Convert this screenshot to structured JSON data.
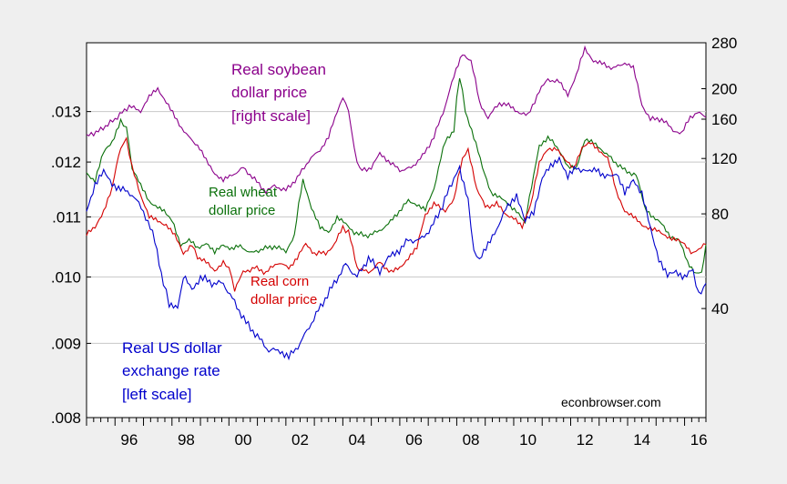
{
  "chart_data": {
    "type": "line",
    "x_tick_labels": [
      "96",
      "98",
      "00",
      "02",
      "04",
      "06",
      "08",
      "10",
      "12",
      "14",
      "16"
    ],
    "x_range": [
      1995.0,
      2016.75
    ],
    "left_axis": {
      "scale": "log",
      "range": [
        0.008,
        0.0145
      ],
      "ticks": [
        0.008,
        0.009,
        0.01,
        0.011,
        0.012,
        0.013
      ],
      "tick_labels": [
        ".008",
        ".009",
        ".010",
        ".011",
        ".012",
        ".013"
      ]
    },
    "right_axis": {
      "scale": "log",
      "range": [
        18,
        280
      ],
      "ticks": [
        40,
        80,
        120,
        160,
        200,
        280
      ],
      "tick_labels": [
        "40",
        "80",
        "120",
        "160",
        "200",
        "280"
      ]
    },
    "grid": true,
    "series": [
      {
        "name": "Real soybean dollar price [right scale]",
        "axis": "right",
        "color": "#8b008b",
        "points": [
          [
            1995.0,
            141
          ],
          [
            1995.5,
            148
          ],
          [
            1996.0,
            160
          ],
          [
            1996.5,
            176
          ],
          [
            1996.9,
            170
          ],
          [
            1997.2,
            188
          ],
          [
            1997.5,
            200
          ],
          [
            1997.8,
            182
          ],
          [
            1998.1,
            162
          ],
          [
            1998.5,
            143
          ],
          [
            1998.9,
            132
          ],
          [
            1999.2,
            118
          ],
          [
            1999.5,
            108
          ],
          [
            1999.8,
            102
          ],
          [
            2000.1,
            106
          ],
          [
            2000.5,
            112
          ],
          [
            2000.9,
            103
          ],
          [
            2001.3,
            94
          ],
          [
            2001.6,
            98
          ],
          [
            2002.0,
            95
          ],
          [
            2002.4,
            104
          ],
          [
            2002.8,
            118
          ],
          [
            2003.2,
            128
          ],
          [
            2003.5,
            140
          ],
          [
            2003.8,
            168
          ],
          [
            2004.0,
            188
          ],
          [
            2004.2,
            170
          ],
          [
            2004.4,
            128
          ],
          [
            2004.6,
            110
          ],
          [
            2005.0,
            112
          ],
          [
            2005.3,
            124
          ],
          [
            2005.6,
            118
          ],
          [
            2006.0,
            110
          ],
          [
            2006.4,
            112
          ],
          [
            2006.8,
            122
          ],
          [
            2007.2,
            140
          ],
          [
            2007.6,
            176
          ],
          [
            2007.9,
            218
          ],
          [
            2008.2,
            260
          ],
          [
            2008.5,
            244
          ],
          [
            2008.8,
            180
          ],
          [
            2009.1,
            162
          ],
          [
            2009.5,
            180
          ],
          [
            2009.9,
            176
          ],
          [
            2010.2,
            168
          ],
          [
            2010.5,
            164
          ],
          [
            2010.9,
            196
          ],
          [
            2011.2,
            214
          ],
          [
            2011.6,
            210
          ],
          [
            2011.9,
            192
          ],
          [
            2012.2,
            220
          ],
          [
            2012.5,
            268
          ],
          [
            2012.8,
            246
          ],
          [
            2013.1,
            240
          ],
          [
            2013.5,
            232
          ],
          [
            2013.9,
            242
          ],
          [
            2014.2,
            232
          ],
          [
            2014.5,
            178
          ],
          [
            2014.8,
            160
          ],
          [
            2015.2,
            160
          ],
          [
            2015.6,
            148
          ],
          [
            2015.9,
            144
          ],
          [
            2016.2,
            162
          ],
          [
            2016.45,
            168
          ],
          [
            2016.75,
            162
          ]
        ]
      },
      {
        "name": "Real wheat dollar price",
        "axis": "right",
        "color": "#0a700a",
        "points": [
          [
            1995.0,
            108
          ],
          [
            1995.3,
            102
          ],
          [
            1995.6,
            125
          ],
          [
            1995.9,
            136
          ],
          [
            1996.2,
            158
          ],
          [
            1996.4,
            150
          ],
          [
            1996.6,
            112
          ],
          [
            1996.9,
            98
          ],
          [
            1997.2,
            88
          ],
          [
            1997.5,
            84
          ],
          [
            1997.8,
            80
          ],
          [
            1998.0,
            76
          ],
          [
            1998.3,
            64
          ],
          [
            1998.6,
            66
          ],
          [
            1998.9,
            62
          ],
          [
            1999.2,
            65
          ],
          [
            1999.5,
            60
          ],
          [
            1999.8,
            64
          ],
          [
            2000.1,
            62
          ],
          [
            2000.4,
            63
          ],
          [
            2000.8,
            60
          ],
          [
            2001.2,
            62
          ],
          [
            2001.6,
            63
          ],
          [
            2002.0,
            61
          ],
          [
            2002.3,
            68
          ],
          [
            2002.6,
            102
          ],
          [
            2002.9,
            84
          ],
          [
            2003.2,
            72
          ],
          [
            2003.5,
            70
          ],
          [
            2003.8,
            78
          ],
          [
            2004.1,
            74
          ],
          [
            2004.4,
            70
          ],
          [
            2004.8,
            68
          ],
          [
            2005.2,
            70
          ],
          [
            2005.6,
            74
          ],
          [
            2005.9,
            80
          ],
          [
            2006.3,
            88
          ],
          [
            2006.6,
            86
          ],
          [
            2006.9,
            82
          ],
          [
            2007.2,
            96
          ],
          [
            2007.6,
            136
          ],
          [
            2007.9,
            148
          ],
          [
            2008.1,
            220
          ],
          [
            2008.3,
            170
          ],
          [
            2008.6,
            140
          ],
          [
            2008.9,
            112
          ],
          [
            2009.2,
            94
          ],
          [
            2009.5,
            90
          ],
          [
            2009.8,
            86
          ],
          [
            2010.1,
            82
          ],
          [
            2010.4,
            74
          ],
          [
            2010.7,
            106
          ],
          [
            2010.9,
            132
          ],
          [
            2011.2,
            140
          ],
          [
            2011.6,
            128
          ],
          [
            2011.9,
            112
          ],
          [
            2012.2,
            112
          ],
          [
            2012.5,
            138
          ],
          [
            2012.8,
            134
          ],
          [
            2013.1,
            128
          ],
          [
            2013.5,
            118
          ],
          [
            2013.9,
            110
          ],
          [
            2014.3,
            106
          ],
          [
            2014.6,
            84
          ],
          [
            2014.9,
            78
          ],
          [
            2015.2,
            74
          ],
          [
            2015.5,
            68
          ],
          [
            2015.8,
            66
          ],
          [
            2016.1,
            56
          ],
          [
            2016.4,
            52
          ],
          [
            2016.6,
            52
          ],
          [
            2016.75,
            64
          ]
        ]
      },
      {
        "name": "Real corn dollar price",
        "axis": "right",
        "color": "#d40000",
        "points": [
          [
            1995.0,
            69
          ],
          [
            1995.3,
            72
          ],
          [
            1995.6,
            82
          ],
          [
            1995.9,
            96
          ],
          [
            1996.2,
            130
          ],
          [
            1996.4,
            138
          ],
          [
            1996.6,
            112
          ],
          [
            1996.9,
            92
          ],
          [
            1997.2,
            78
          ],
          [
            1997.5,
            76
          ],
          [
            1997.8,
            74
          ],
          [
            1998.1,
            68
          ],
          [
            1998.4,
            60
          ],
          [
            1998.7,
            64
          ],
          [
            1998.9,
            58
          ],
          [
            1999.2,
            56
          ],
          [
            1999.5,
            53
          ],
          [
            1999.8,
            56
          ],
          [
            2000.0,
            54
          ],
          [
            2000.2,
            46
          ],
          [
            2000.5,
            52
          ],
          [
            2000.9,
            54
          ],
          [
            2001.3,
            52
          ],
          [
            2001.7,
            56
          ],
          [
            2002.1,
            54
          ],
          [
            2002.4,
            58
          ],
          [
            2002.7,
            64
          ],
          [
            2003.0,
            60
          ],
          [
            2003.4,
            60
          ],
          [
            2003.7,
            64
          ],
          [
            2004.0,
            72
          ],
          [
            2004.2,
            70
          ],
          [
            2004.5,
            54
          ],
          [
            2004.9,
            52
          ],
          [
            2005.3,
            56
          ],
          [
            2005.7,
            52
          ],
          [
            2006.0,
            54
          ],
          [
            2006.3,
            58
          ],
          [
            2006.6,
            62
          ],
          [
            2006.9,
            80
          ],
          [
            2007.2,
            86
          ],
          [
            2007.6,
            82
          ],
          [
            2007.9,
            88
          ],
          [
            2008.2,
            120
          ],
          [
            2008.4,
            128
          ],
          [
            2008.7,
            96
          ],
          [
            2009.0,
            84
          ],
          [
            2009.4,
            86
          ],
          [
            2009.7,
            80
          ],
          [
            2010.0,
            78
          ],
          [
            2010.3,
            72
          ],
          [
            2010.6,
            86
          ],
          [
            2010.9,
            116
          ],
          [
            2011.2,
            128
          ],
          [
            2011.5,
            130
          ],
          [
            2011.8,
            118
          ],
          [
            2012.1,
            112
          ],
          [
            2012.4,
            130
          ],
          [
            2012.7,
            134
          ],
          [
            2013.0,
            128
          ],
          [
            2013.3,
            120
          ],
          [
            2013.6,
            94
          ],
          [
            2013.9,
            82
          ],
          [
            2014.2,
            78
          ],
          [
            2014.5,
            74
          ],
          [
            2014.8,
            72
          ],
          [
            2015.1,
            70
          ],
          [
            2015.4,
            68
          ],
          [
            2015.7,
            66
          ],
          [
            2016.0,
            64
          ],
          [
            2016.3,
            60
          ],
          [
            2016.5,
            62
          ],
          [
            2016.75,
            64
          ]
        ]
      },
      {
        "name": "Real US dollar exchange rate [left scale]",
        "axis": "left",
        "color": "#0000cc",
        "points": [
          [
            1995.0,
            0.0111
          ],
          [
            1995.3,
            0.0116
          ],
          [
            1995.6,
            0.0118
          ],
          [
            1995.9,
            0.0116
          ],
          [
            1996.2,
            0.0115
          ],
          [
            1996.6,
            0.0114
          ],
          [
            1997.0,
            0.0111
          ],
          [
            1997.4,
            0.0106
          ],
          [
            1997.7,
            0.0099
          ],
          [
            1997.9,
            0.0096
          ],
          [
            1998.2,
            0.0095
          ],
          [
            1998.4,
            0.01
          ],
          [
            1998.7,
            0.0098
          ],
          [
            1999.0,
            0.01
          ],
          [
            1999.4,
            0.0099
          ],
          [
            1999.8,
            0.0099
          ],
          [
            2000.2,
            0.0096
          ],
          [
            2000.6,
            0.0093
          ],
          [
            2001.0,
            0.0091
          ],
          [
            2001.4,
            0.0089
          ],
          [
            2001.8,
            0.0089
          ],
          [
            2002.1,
            0.0088
          ],
          [
            2002.5,
            0.009
          ],
          [
            2002.9,
            0.0093
          ],
          [
            2003.3,
            0.0096
          ],
          [
            2003.7,
            0.0099
          ],
          [
            2004.1,
            0.0102
          ],
          [
            2004.5,
            0.01
          ],
          [
            2004.9,
            0.0103
          ],
          [
            2005.3,
            0.0101
          ],
          [
            2005.6,
            0.0103
          ],
          [
            2005.9,
            0.0104
          ],
          [
            2006.3,
            0.0106
          ],
          [
            2006.7,
            0.0106
          ],
          [
            2007.1,
            0.0108
          ],
          [
            2007.5,
            0.0112
          ],
          [
            2007.9,
            0.0117
          ],
          [
            2008.1,
            0.0119
          ],
          [
            2008.4,
            0.0113
          ],
          [
            2008.6,
            0.0104
          ],
          [
            2008.8,
            0.0103
          ],
          [
            2009.1,
            0.0105
          ],
          [
            2009.4,
            0.0108
          ],
          [
            2009.8,
            0.0112
          ],
          [
            2010.1,
            0.0114
          ],
          [
            2010.4,
            0.0109
          ],
          [
            2010.7,
            0.0111
          ],
          [
            2011.0,
            0.0117
          ],
          [
            2011.3,
            0.0119
          ],
          [
            2011.6,
            0.0121
          ],
          [
            2011.9,
            0.0117
          ],
          [
            2012.2,
            0.0119
          ],
          [
            2012.6,
            0.0118
          ],
          [
            2012.9,
            0.0119
          ],
          [
            2013.2,
            0.0117
          ],
          [
            2013.6,
            0.0118
          ],
          [
            2013.9,
            0.0114
          ],
          [
            2014.2,
            0.0117
          ],
          [
            2014.5,
            0.0114
          ],
          [
            2014.8,
            0.0108
          ],
          [
            2015.1,
            0.0103
          ],
          [
            2015.4,
            0.01
          ],
          [
            2015.7,
            0.0101
          ],
          [
            2016.0,
            0.01
          ],
          [
            2016.3,
            0.0101
          ],
          [
            2016.5,
            0.0097
          ],
          [
            2016.75,
            0.0099
          ]
        ]
      }
    ],
    "annotations": {
      "soybean": [
        "Real soybean",
        "dollar price",
        "[right scale]"
      ],
      "wheat": [
        "Real wheat",
        "dollar price"
      ],
      "corn": [
        "Real corn",
        "dollar price"
      ],
      "usd": [
        "Real US dollar",
        "exchange rate",
        "[left scale]"
      ]
    },
    "credit": "econbrowser.com"
  }
}
